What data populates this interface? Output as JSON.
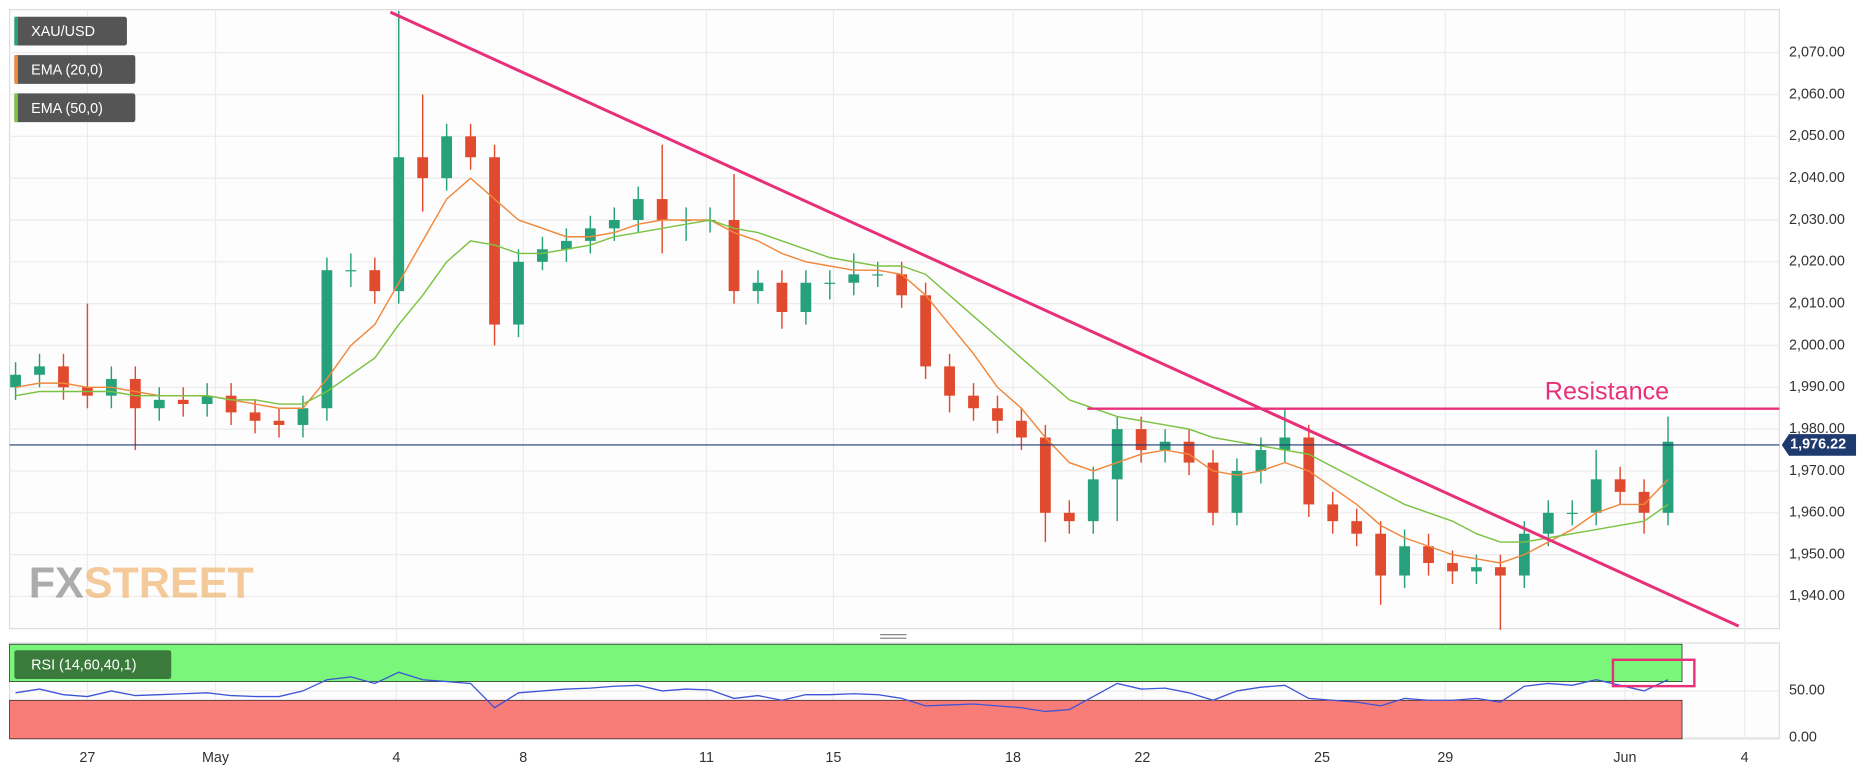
{
  "chart_data": {
    "type": "candlestick",
    "watermark": [
      "FX",
      "STREET"
    ],
    "xlim": [
      0,
      147.8
    ],
    "xticks": [
      {
        "value": 6.5,
        "label": "27"
      },
      {
        "value": 17.2,
        "label": "May"
      },
      {
        "value": 32.3,
        "label": "4"
      },
      {
        "value": 42.9,
        "label": "8"
      },
      {
        "value": 58.2,
        "label": "11"
      },
      {
        "value": 68.8,
        "label": "15"
      },
      {
        "value": 83.8,
        "label": "18"
      },
      {
        "value": 94.6,
        "label": "22"
      },
      {
        "value": 109.6,
        "label": "25"
      },
      {
        "value": 119.9,
        "label": "29"
      },
      {
        "value": 134.9,
        "label": "Jun"
      },
      {
        "value": 144.9,
        "label": "4"
      }
    ],
    "ylim": [
      1932.3,
      2080.3
    ],
    "yticks": [
      {
        "value": 1940,
        "label": "1,940.00"
      },
      {
        "value": 1950,
        "label": "1,950.00"
      },
      {
        "value": 1960,
        "label": "1,960.00"
      },
      {
        "value": 1970,
        "label": "1,970.00"
      },
      {
        "value": 1980,
        "label": "1,980.00"
      },
      {
        "value": 1990,
        "label": "1,990.00"
      },
      {
        "value": 2000,
        "label": "2,000.00"
      },
      {
        "value": 2010,
        "label": "2,010.00"
      },
      {
        "value": 2020,
        "label": "2,020.00"
      },
      {
        "value": 2030,
        "label": "2,030.00"
      },
      {
        "value": 2040,
        "label": "2,040.00"
      },
      {
        "value": 2050,
        "label": "2,050.00"
      },
      {
        "value": 2060,
        "label": "2,060.00"
      },
      {
        "value": 2070,
        "label": "2,070.00"
      }
    ],
    "grid": true,
    "candles": {
      "name": "XAU/USD",
      "color": "#26a17b",
      "up_color": "#26a17b",
      "down_color": "#e04a2f",
      "x": [
        0.5,
        2.5,
        4.5,
        6.5,
        8.5,
        10.5,
        12.5,
        14.5,
        16.5,
        18.5,
        20.5,
        22.5,
        24.5,
        26.5,
        28.5,
        30.5,
        32.5,
        34.5,
        36.5,
        38.5,
        40.5,
        42.5,
        44.5,
        46.5,
        48.5,
        50.5,
        52.5,
        54.5,
        56.5,
        58.5,
        60.5,
        62.5,
        64.5,
        66.5,
        68.5,
        70.5,
        72.5,
        74.5,
        76.5,
        78.5,
        80.5,
        82.5,
        84.5,
        86.5,
        88.5,
        90.5,
        92.5,
        94.5,
        96.5,
        98.5,
        100.5,
        102.5,
        104.5,
        106.5,
        108.5,
        110.5,
        112.5,
        114.5,
        116.5,
        118.5,
        120.5,
        122.5,
        124.5,
        126.5,
        128.5,
        130.5,
        132.5,
        134.5,
        136.5,
        138.5
      ],
      "open": [
        1990,
        1993,
        1995,
        1990,
        1988,
        1992,
        1985,
        1987,
        1986,
        1988,
        1984,
        1982,
        1981,
        1985,
        2018,
        2018,
        2013,
        2045,
        2040,
        2050,
        2045,
        2005,
        2020,
        2023,
        2025,
        2028,
        2030,
        2035,
        2030,
        2030,
        2030,
        2013,
        2015,
        2008,
        2015,
        2015,
        2017,
        2017,
        2012,
        1995,
        1988,
        1985,
        1982,
        1978,
        1960,
        1958,
        1968,
        1980,
        1975,
        1977,
        1972,
        1960,
        1970,
        1975,
        1978,
        1962,
        1958,
        1955,
        1945,
        1952,
        1948,
        1946,
        1947,
        1945,
        1955,
        1960,
        1960,
        1968,
        1965,
        1960
      ],
      "high": [
        1996,
        1998,
        1998,
        2010,
        1995,
        1995,
        1990,
        1990,
        1991,
        1991,
        1987,
        1985,
        1988,
        2021,
        2022,
        2021,
        2080,
        2060,
        2053,
        2053,
        2048,
        2023,
        2026,
        2028,
        2031,
        2033,
        2038,
        2048,
        2033,
        2033,
        2041,
        2018,
        2018,
        2018,
        2018,
        2022,
        2020,
        2020,
        2015,
        1998,
        1991,
        1988,
        1985,
        1981,
        1963,
        1971,
        1983,
        1983,
        1980,
        1980,
        1975,
        1973,
        1978,
        1985,
        1981,
        1965,
        1961,
        1958,
        1956,
        1955,
        1951,
        1950,
        1950,
        1958,
        1963,
        1963,
        1975,
        1971,
        1968,
        1983
      ],
      "low": [
        1987,
        1990,
        1987,
        1985,
        1985,
        1975,
        1982,
        1983,
        1983,
        1981,
        1979,
        1978,
        1978,
        1982,
        2014,
        2010,
        2010,
        2032,
        2037,
        2042,
        2000,
        2002,
        2018,
        2020,
        2022,
        2025,
        2027,
        2022,
        2025,
        2027,
        2010,
        2010,
        2004,
        2005,
        2011,
        2012,
        2014,
        2009,
        1992,
        1984,
        1982,
        1979,
        1975,
        1953,
        1955,
        1955,
        1958,
        1972,
        1972,
        1969,
        1957,
        1957,
        1967,
        1972,
        1959,
        1955,
        1952,
        1938,
        1942,
        1945,
        1943,
        1943,
        1932,
        1942,
        1952,
        1957,
        1957,
        1962,
        1955,
        1957
      ],
      "close": [
        1993,
        1995,
        1990,
        1988,
        1992,
        1985,
        1987,
        1986,
        1988,
        1984,
        1982,
        1981,
        1985,
        2018,
        2018,
        2013,
        2045,
        2040,
        2050,
        2045,
        2005,
        2020,
        2023,
        2025,
        2028,
        2030,
        2035,
        2030,
        2030,
        2030,
        2013,
        2015,
        2008,
        2015,
        2015,
        2017,
        2017,
        2012,
        1995,
        1988,
        1985,
        1982,
        1978,
        1960,
        1958,
        1968,
        1980,
        1975,
        1977,
        1972,
        1960,
        1970,
        1975,
        1978,
        1962,
        1958,
        1955,
        1945,
        1952,
        1948,
        1946,
        1947,
        1945,
        1955,
        1960,
        1960,
        1968,
        1965,
        1960,
        1977
      ]
    },
    "series": [
      {
        "name": "EMA (20,0)",
        "color": "#f0883c",
        "values": [
          1990,
          1991,
          1991,
          1990,
          1990,
          1989,
          1988,
          1988,
          1988,
          1987,
          1986,
          1985,
          1985,
          1992,
          2000,
          2005,
          2015,
          2025,
          2035,
          2040,
          2035,
          2030,
          2028,
          2026,
          2026,
          2027,
          2029,
          2030,
          2030,
          2030,
          2027,
          2025,
          2022,
          2020,
          2019,
          2018,
          2018,
          2017,
          2012,
          2005,
          1998,
          1990,
          1985,
          1978,
          1972,
          1970,
          1972,
          1974,
          1975,
          1974,
          1970,
          1969,
          1970,
          1972,
          1970,
          1966,
          1962,
          1957,
          1954,
          1952,
          1950,
          1949,
          1948,
          1950,
          1953,
          1956,
          1960,
          1962,
          1962,
          1968
        ]
      },
      {
        "name": "EMA (50,0)",
        "color": "#7cc242",
        "values": [
          1988,
          1989,
          1989,
          1989,
          1989,
          1988,
          1988,
          1988,
          1988,
          1987,
          1987,
          1986,
          1986,
          1989,
          1993,
          1997,
          2005,
          2012,
          2020,
          2025,
          2024,
          2022,
          2022,
          2023,
          2024,
          2026,
          2027,
          2028,
          2029,
          2030,
          2028,
          2027,
          2025,
          2023,
          2021,
          2020,
          2019,
          2019,
          2017,
          2012,
          2007,
          2002,
          1997,
          1992,
          1987,
          1985,
          1983,
          1982,
          1981,
          1980,
          1978,
          1977,
          1976,
          1975,
          1974,
          1971,
          1968,
          1965,
          1962,
          1960,
          1958,
          1955,
          1953,
          1953,
          1954,
          1955,
          1956,
          1957,
          1958,
          1962
        ]
      }
    ],
    "last_price": {
      "value": 1976.22,
      "label": "1,976.22",
      "color": "#1e3a6e"
    },
    "trendline": {
      "color": "#e8307a",
      "x": [
        31.8,
        144.4
      ],
      "y": [
        2079.7,
        1932.9
      ]
    },
    "resistance": {
      "label": "Resistance",
      "value": 1984.9,
      "x": [
        90,
        147.8
      ],
      "color": "#e8307a"
    },
    "rsi": {
      "name": "RSI (14,60,40,1)",
      "color": "#3d55d6",
      "ylim": [
        -1.3,
        101.3
      ],
      "yticks": [
        {
          "value": 0,
          "label": "0.00"
        },
        {
          "value": 50,
          "label": "50.00"
        }
      ],
      "upper": 60,
      "lower": 40,
      "upper_color": "#7af77a",
      "lower_color": "#f87c78",
      "values": [
        48,
        52,
        46,
        44,
        50,
        45,
        46,
        47,
        48,
        45,
        44,
        44,
        50,
        62,
        65,
        58,
        70,
        62,
        60,
        58,
        32,
        48,
        50,
        52,
        53,
        55,
        56,
        50,
        52,
        51,
        42,
        45,
        40,
        46,
        46,
        47,
        46,
        42,
        34,
        35,
        36,
        34,
        32,
        28,
        30,
        44,
        58,
        52,
        53,
        48,
        40,
        50,
        54,
        56,
        42,
        40,
        38,
        34,
        42,
        40,
        40,
        42,
        38,
        55,
        58,
        56,
        62,
        56,
        50,
        62
      ]
    }
  }
}
